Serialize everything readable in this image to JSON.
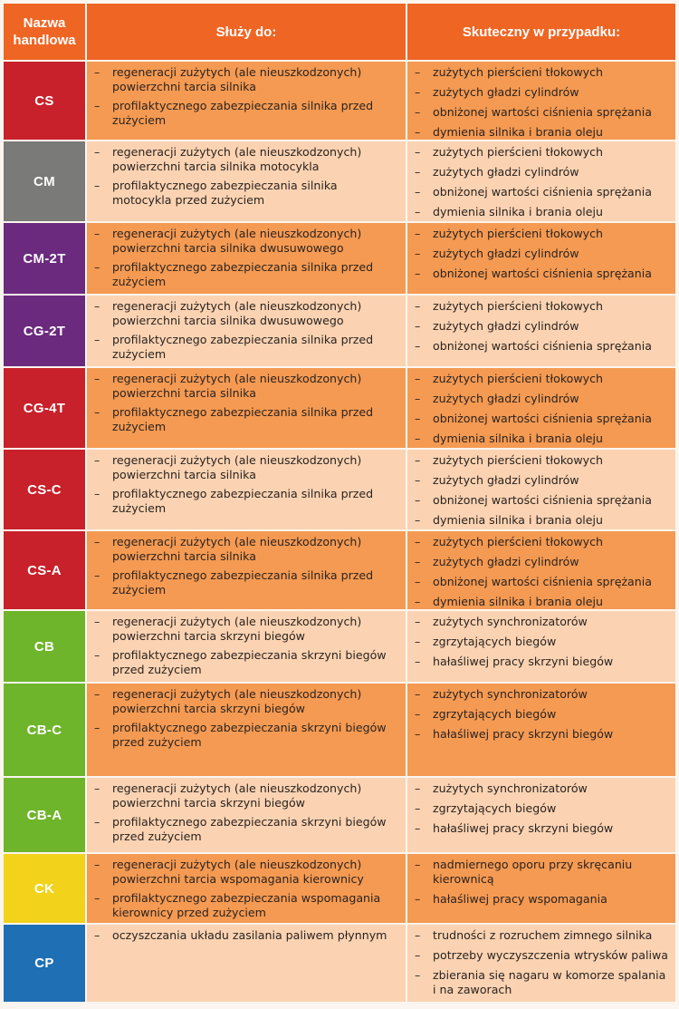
{
  "header": {
    "name": "Nazwa handlowa",
    "uses": "Służy do:",
    "cases": "Skuteczny w przypadku:"
  },
  "rows": [
    {
      "name": "CS",
      "color": "#c8212b",
      "uses": [
        "regeneracji zużytych (ale nieuszkodzonych) powierzchni tarcia silnika",
        "profilaktycznego zabezpieczania silnika przed zużyciem"
      ],
      "cases": [
        "zużytych pierścieni tłokowych",
        "zużytych gładzi cylindrów",
        "obniżonej wartości ciśnienia sprężania",
        "dymienia silnika i brania oleju"
      ]
    },
    {
      "name": "CM",
      "color": "#7a7a78",
      "uses": [
        "regeneracji zużytych (ale nieuszkodzonych) powierzchni tarcia silnika motocykla",
        "profilaktycznego zabezpieczania silnika motocykla przed zużyciem"
      ],
      "cases": [
        "zużytych pierścieni tłokowych",
        "zużytych gładzi cylindrów",
        "obniżonej wartości ciśnienia sprężania",
        "dymienia silnika i brania oleju"
      ]
    },
    {
      "name": "CM-2T",
      "color": "#6b2a7e",
      "uses": [
        "regeneracji zużytych (ale nieuszkodzonych) powierzchni tarcia silnika dwusuwowego",
        "profilaktycznego zabezpieczania silnika przed zużyciem"
      ],
      "cases": [
        "zużytych pierścieni tłokowych",
        "zużytych gładzi cylindrów",
        "obniżonej wartości ciśnienia sprężania"
      ]
    },
    {
      "name": "CG-2T",
      "color": "#6b2a7e",
      "uses": [
        "regeneracji zużytych (ale nieuszkodzonych) powierzchni tarcia silnika dwusuwowego",
        "profilaktycznego zabezpieczania silnika przed zużyciem"
      ],
      "cases": [
        "zużytych pierścieni tłokowych",
        "zużytych gładzi cylindrów",
        "obniżonej wartości ciśnienia sprężania"
      ]
    },
    {
      "name": "CG-4T",
      "color": "#c8212b",
      "uses": [
        "regeneracji zużytych (ale nieuszkodzonych) powierzchni tarcia silnika",
        "profilaktycznego zabezpieczania silnika przed zużyciem"
      ],
      "cases": [
        "zużytych pierścieni tłokowych",
        "zużytych gładzi cylindrów",
        "obniżonej wartości ciśnienia sprężania",
        "dymienia silnika i brania oleju"
      ]
    },
    {
      "name": "CS-C",
      "color": "#c8212b",
      "uses": [
        "regeneracji zużytych (ale nieuszkodzonych) powierzchni tarcia silnika",
        "profilaktycznego zabezpieczania silnika przed zużyciem"
      ],
      "cases": [
        "zużytych pierścieni tłokowych",
        "zużytych gładzi cylindrów",
        "obniżonej wartości ciśnienia sprężania",
        "dymienia silnika i brania oleju"
      ]
    },
    {
      "name": "CS-A",
      "color": "#c8212b",
      "uses": [
        "regeneracji zużytych (ale nieuszkodzonych) powierzchni tarcia silnika",
        "profilaktycznego zabezpieczania silnika przed zużyciem"
      ],
      "cases": [
        "zużytych pierścieni tłokowych",
        "zużytych gładzi cylindrów",
        "obniżonej wartości ciśnienia sprężania",
        "dymienia silnika i brania oleju"
      ]
    },
    {
      "name": "CB",
      "color": "#6fb52b",
      "uses": [
        "regeneracji zużytych (ale nieuszkodzonych) powierzchni tarcia skrzyni biegów",
        "profilaktycznego zabezpieczania skrzyni biegów przed zużyciem"
      ],
      "cases": [
        "zużytych synchronizatorów",
        "zgrzytających biegów",
        "hałaśliwej pracy skrzyni biegów"
      ]
    },
    {
      "name": "CB-C",
      "color": "#6fb52b",
      "uses": [
        "regeneracji zużytych (ale nieuszkodzonych) powierzchni tarcia skrzyni biegów",
        "profilaktycznego zabezpieczania skrzyni biegów przed zużyciem"
      ],
      "cases": [
        "zużytych synchronizatorów",
        "zgrzytających biegów",
        "hałaśliwej pracy skrzyni biegów"
      ]
    },
    {
      "name": "CB-A",
      "color": "#6fb52b",
      "uses": [
        "regeneracji zużytych (ale nieuszkodzonych) powierzchni tarcia skrzyni biegów",
        "profilaktycznego zabezpieczania skrzyni biegów przed zużyciem"
      ],
      "cases": [
        "zużytych synchronizatorów",
        "zgrzytających biegów",
        "hałaśliwej pracy skrzyni biegów"
      ]
    },
    {
      "name": "CK",
      "color": "#f2d21a",
      "uses": [
        "regeneracji zużytych (ale nieuszkodzonych) powierzchni tarcia wspomagania kierownicy",
        "profilaktycznego zabezpieczania wspomagania kierownicy przed zużyciem"
      ],
      "cases": [
        "nadmiernego oporu przy skręcaniu kierownicą",
        "hałaśliwej pracy wspomagania"
      ]
    },
    {
      "name": "CP",
      "color": "#1f6fb5",
      "uses": [
        "oczyszczania układu zasilania paliwem płynnym"
      ],
      "cases": [
        "trudności z rozruchem zimnego silnika",
        "potrzeby wyczyszczenia wtrysków paliwa",
        "zbierania się nagaru w komorze spalania i na zaworach"
      ]
    }
  ]
}
